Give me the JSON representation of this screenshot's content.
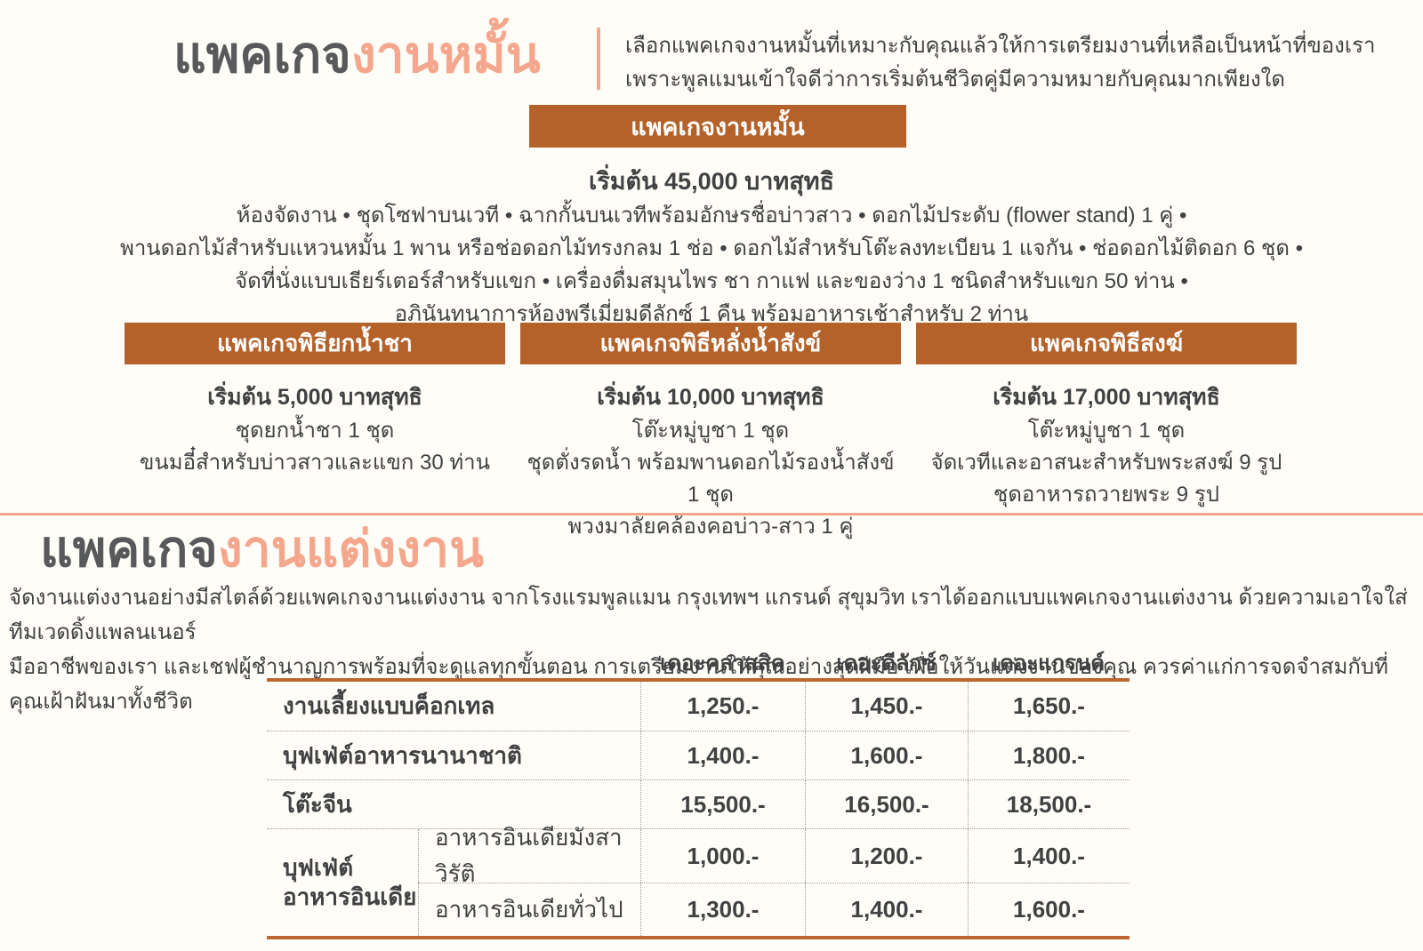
{
  "colors": {
    "banner_brown": "#b5622a",
    "accent_salmon": "#f4a78d",
    "table_line_orange": "#bc6630",
    "text_dark": "#414042",
    "title_gray": "#58595b"
  },
  "engagement": {
    "title_prefix": "แพคเกจ",
    "title_accent": "งานหมั้น",
    "intro_line1": "เลือกแพคเกจงานหมั้นที่เหมาะกับคุณแล้วให้การเตรียมงานที่เหลือเป็นหน้าที่ของเรา",
    "intro_line2": "เพราะพูลแมนเข้าใจดีว่าการเริ่มต้นชีวิตคู่มีความหมายกับคุณมากเพียงใด",
    "main_package": {
      "banner": "แพคเกจงานหมั้น",
      "price": "เริ่มต้น 45,000 บาทสุทธิ",
      "details": [
        "ห้องจัดงาน • ชุดโซฟาบนเวที • ฉากกั้นบนเวทีพร้อมอักษรชื่อบ่าวสาว • ดอกไม้ประดับ (flower stand) 1 คู่ •",
        "พานดอกไม้สำหรับแหวนหมั้น 1 พาน หรือช่อดอกไม้ทรงกลม 1 ช่อ • ดอกไม้สำหรับโต๊ะลงทะเบียน 1 แจกัน • ช่อดอกไม้ติดอก 6 ชุด •",
        "จัดที่นั่งแบบเธียร์เตอร์สำหรับแขก • เครื่องดื่มสมุนไพร ชา กาแฟ และของว่าง 1 ชนิดสำหรับแขก 50 ท่าน •",
        "อภินันทนาการห้องพรีเมี่ยมดีลักซ์ 1 คืน พร้อมอาหารเช้าสำหรับ 2 ท่าน"
      ]
    },
    "sub_packages": [
      {
        "banner": "แพคเกจพิธียกน้ำชา",
        "price": "เริ่มต้น 5,000 บาทสุทธิ",
        "lines": [
          "ชุดยกน้ำชา 1 ชุด",
          "ขนมอี๋สำหรับบ่าวสาวและแขก 30 ท่าน"
        ]
      },
      {
        "banner": "แพคเกจพิธีหลั่งน้ำสังข์",
        "price": "เริ่มต้น 10,000 บาทสุทธิ",
        "lines": [
          "โต๊ะหมู่บูชา 1 ชุด",
          "ชุดตั่งรดน้ำ พร้อมพานดอกไม้รองน้ำสังข์ 1 ชุด",
          "พวงมาลัยคล้องคอบ่าว-สาว 1 คู่"
        ]
      },
      {
        "banner": "แพคเกจพิธีสงฆ์",
        "price": "เริ่มต้น 17,000 บาทสุทธิ",
        "lines": [
          "โต๊ะหมู่บูชา 1 ชุด",
          "จัดเวทีและอาสนะสำหรับพระสงฆ์ 9 รูป",
          "ชุดอาหารถวายพระ 9 รูป"
        ]
      }
    ]
  },
  "wedding": {
    "title_prefix": "แพคเกจ",
    "title_accent": "งานแต่งงาน",
    "intro_line1": "จัดงานแต่งงานอย่างมีสไตล์ด้วยแพคเกจงานแต่งงาน จากโรงแรมพูลแมน กรุงเทพฯ แกรนด์ สุขุมวิท เราได้ออกแบบแพคเกจงานแต่งงาน ด้วยความเอาใจใส่  ทีมเวดดิ้งแพลนเนอร์",
    "intro_line2": "มืออาชีพของเรา และเชฟผู้ชำนาญการพร้อมที่จะดูแลทุกขั้นตอน การเตรียมงานให้คุณอย่างสุดฝีมือ เพื่อให้วันแต่งงานของคุณ ควรค่าแก่การจดจำสมกับที่คุณเฝ้าฝันมาทั้งชีวิต",
    "table": {
      "columns": [
        "เดอะคลาสสิค",
        "เดอะดีลักซ์",
        "เดอะแกรนด์"
      ],
      "rows": [
        {
          "label": "งานเลี้ยงแบบค็อกเทล",
          "values": [
            "1,250.-",
            "1,450.-",
            "1,650.-"
          ]
        },
        {
          "label": "บุฟเฟ่ต์อาหารนานาชาติ",
          "values": [
            "1,400.-",
            "1,600.-",
            "1,800.-"
          ]
        },
        {
          "label": "โต๊ะจีน",
          "values": [
            "15,500.-",
            "16,500.-",
            "18,500.-"
          ]
        }
      ],
      "group": {
        "label_line1": "บุฟเฟ่ต์",
        "label_line2": "อาหารอินเดีย",
        "rows": [
          {
            "label": "อาหารอินเดียมังสาวิรัติ",
            "values": [
              "1,000.-",
              "1,200.-",
              "1,400.-"
            ]
          },
          {
            "label": "อาหารอินเดียทั่วไป",
            "values": [
              "1,300.-",
              "1,400.-",
              "1,600.-"
            ]
          }
        ]
      }
    }
  }
}
